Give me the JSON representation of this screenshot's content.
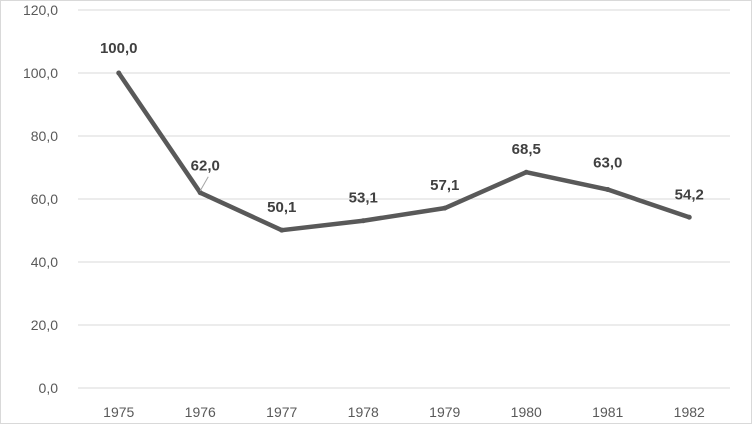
{
  "chart_data": {
    "type": "line",
    "title": "",
    "xlabel": "",
    "ylabel": "",
    "categories": [
      "1975",
      "1976",
      "1977",
      "1978",
      "1979",
      "1980",
      "1981",
      "1982"
    ],
    "series": [
      {
        "values": [
          100.0,
          62.0,
          50.1,
          53.1,
          57.1,
          68.5,
          63.0,
          54.2
        ],
        "labels": [
          "100,0",
          "62,0",
          "50,1",
          "53,1",
          "57,1",
          "68,5",
          "63,0",
          "54,2"
        ]
      }
    ],
    "ylim": [
      0,
      120
    ],
    "y_ticks": [
      "0,0",
      "20,0",
      "40,0",
      "60,0",
      "80,0",
      "100,0",
      "120,0"
    ],
    "y_tick_values": [
      0,
      20,
      40,
      60,
      80,
      100,
      120
    ],
    "grid": true,
    "legend": "none",
    "colors": {
      "line": "#595959",
      "grid": "#d9d9d9",
      "label": "#404040",
      "tick": "#595959"
    }
  }
}
